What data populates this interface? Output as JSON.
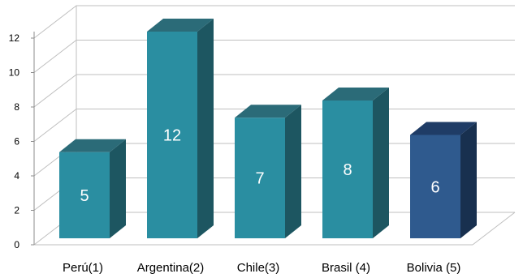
{
  "chart_data": {
    "type": "bar",
    "categories": [
      "Perú(1)",
      "Argentina(2)",
      "Chile(3)",
      "Brasil (4)",
      "Bolivia (5)"
    ],
    "values": [
      5,
      12,
      7,
      8,
      6
    ],
    "ylim": [
      0,
      12
    ],
    "yticks": [
      0,
      2,
      4,
      6,
      8,
      10,
      12
    ],
    "grid": true,
    "style": "3d",
    "colors": {
      "front": [
        "#2a8ea1",
        "#2a8ea1",
        "#2a8ea1",
        "#2a8ea1",
        "#2f5a8e"
      ],
      "top": [
        "#2b6b78",
        "#2b6b78",
        "#2b6b78",
        "#2b6b78",
        "#1f3c66"
      ],
      "side": [
        "#1d5661",
        "#1d5661",
        "#1d5661",
        "#1d5661",
        "#18304f"
      ],
      "grid": "#bfbfbf",
      "data_label": "#ffffff"
    }
  }
}
